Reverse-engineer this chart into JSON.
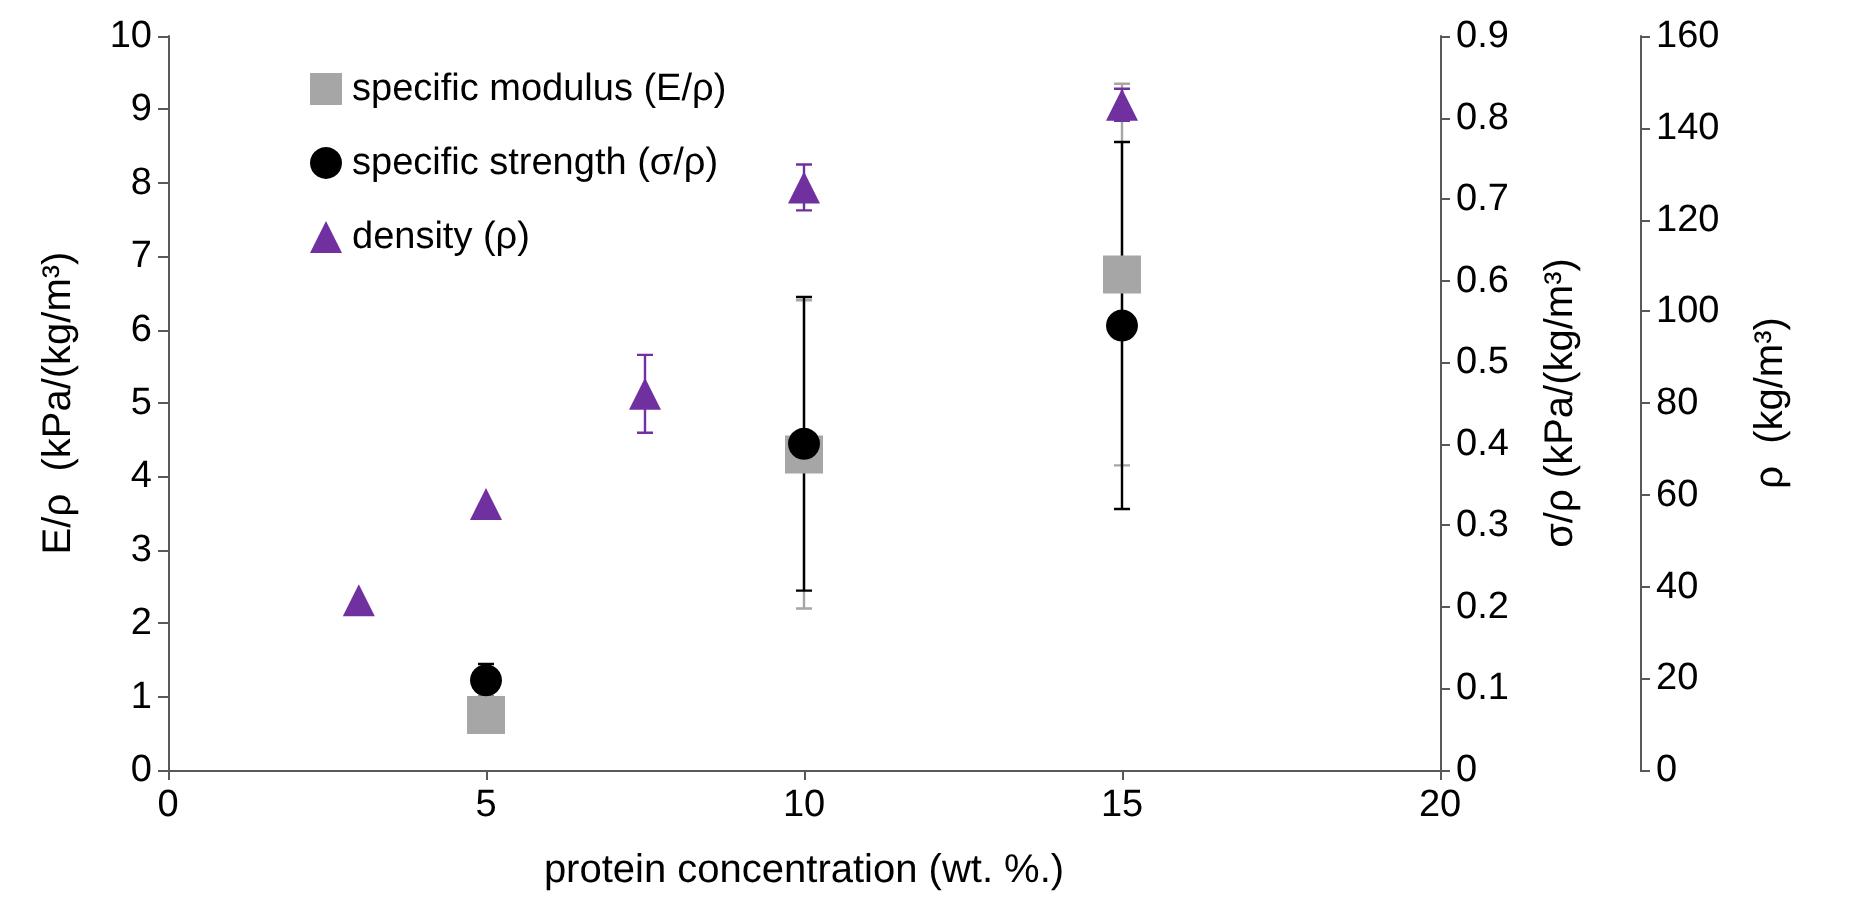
{
  "chart_data": {
    "type": "scatter",
    "xlabel": "protein concentration (wt. %.)",
    "ylabel": "E/ρ  (kPa/(kg/m³)",
    "y2label": "σ/ρ (kPa/(kg/m³)",
    "y3label": "ρ  (kg/m³)",
    "xlim": [
      0,
      20
    ],
    "xticks": [
      0,
      5,
      10,
      15,
      20
    ],
    "ylim": [
      0,
      10
    ],
    "yticks": [
      0,
      1,
      2,
      3,
      4,
      5,
      6,
      7,
      8,
      9,
      10
    ],
    "y2lim": [
      0,
      0.9
    ],
    "y2ticks": [
      0,
      0.1,
      0.2,
      0.3,
      0.4,
      0.5,
      0.6,
      0.7,
      0.8,
      0.9
    ],
    "y3lim": [
      0,
      160
    ],
    "y3ticks": [
      0,
      20,
      40,
      60,
      80,
      100,
      120,
      140,
      160
    ],
    "grid": false,
    "legend": "top left",
    "series": [
      {
        "name": "specific modulus (E/ρ)",
        "color": "#a6a6a6",
        "marker": "square",
        "x": [
          5,
          10,
          15
        ],
        "values": [
          0.75,
          4.3,
          6.75
        ],
        "errors": [
          null,
          2.1,
          2.6
        ]
      },
      {
        "name": "specific strength (σ/ρ)",
        "color": "#000000",
        "marker": "circle",
        "axis": "y2",
        "x": [
          5,
          10,
          15
        ],
        "values": [
          0.11,
          0.4,
          0.545
        ],
        "errors": [
          0.02,
          0.18,
          0.225
        ]
      },
      {
        "name": "density (ρ)",
        "color": "#7030a0",
        "marker": "triangle",
        "axis": "y3",
        "x": [
          3,
          5,
          7.5,
          10,
          15
        ],
        "values": [
          37,
          58,
          82,
          127,
          145
        ],
        "errors": [
          null,
          null,
          8.5,
          5,
          3.5
        ]
      }
    ]
  }
}
